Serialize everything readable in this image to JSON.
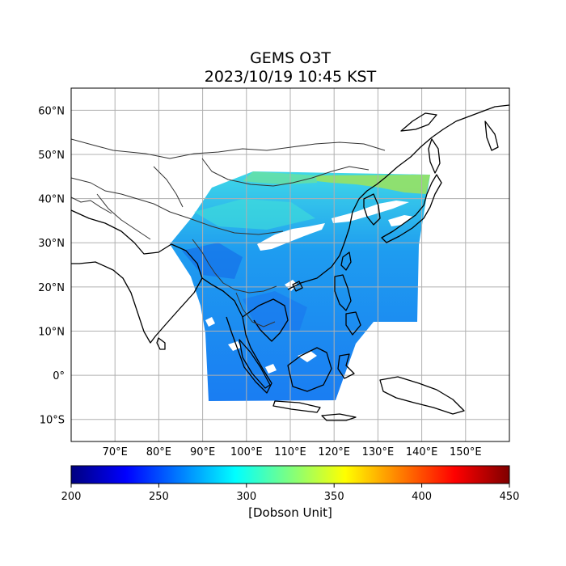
{
  "title_line1": "GEMS O3T",
  "title_line2": "2023/10/19 10:45 KST",
  "map": {
    "lon_range": [
      60,
      160
    ],
    "lat_range": [
      -15,
      65
    ],
    "grid": true,
    "lat_ticks": [
      {
        "value": 60,
        "label": "60°N"
      },
      {
        "value": 50,
        "label": "50°N"
      },
      {
        "value": 40,
        "label": "40°N"
      },
      {
        "value": 30,
        "label": "30°N"
      },
      {
        "value": 20,
        "label": "20°N"
      },
      {
        "value": 10,
        "label": "10°N"
      },
      {
        "value": 0,
        "label": "0°"
      },
      {
        "value": -10,
        "label": "10°S"
      }
    ],
    "lon_ticks": [
      {
        "value": 70,
        "label": "70°E"
      },
      {
        "value": 80,
        "label": "80°E"
      },
      {
        "value": 90,
        "label": "90°E"
      },
      {
        "value": 100,
        "label": "100°E"
      },
      {
        "value": 110,
        "label": "110°E"
      },
      {
        "value": 120,
        "label": "120°E"
      },
      {
        "value": 130,
        "label": "130°E"
      },
      {
        "value": 140,
        "label": "140°E"
      },
      {
        "value": 150,
        "label": "150°E"
      }
    ],
    "field_colors": {
      "north": "#3fd8e8",
      "mid": "#1e9cf0",
      "south": "#1a7df2",
      "high_ozone": "#9ee35a",
      "cloud_gap": "#ffffff"
    }
  },
  "colorbar": {
    "min": 200,
    "max": 450,
    "ticks": [
      {
        "value": 200,
        "label": "200"
      },
      {
        "value": 250,
        "label": "250"
      },
      {
        "value": 300,
        "label": "300"
      },
      {
        "value": 350,
        "label": "350"
      },
      {
        "value": 400,
        "label": "400"
      },
      {
        "value": 450,
        "label": "450"
      }
    ],
    "label": "[Dobson Unit]",
    "colormap": "jet",
    "colormap_stops": [
      "#00007f",
      "#0000ff",
      "#007fff",
      "#00ffff",
      "#7fff7f",
      "#ffff00",
      "#ff7f00",
      "#ff0000",
      "#7f0000"
    ]
  }
}
